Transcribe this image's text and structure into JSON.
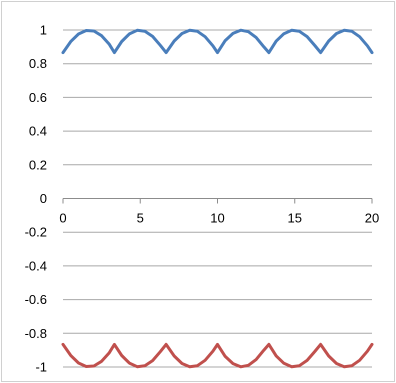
{
  "chart_data": {
    "type": "line",
    "title": "",
    "xlabel": "",
    "ylabel": "",
    "xlim": [
      0,
      20
    ],
    "ylim": [
      -1,
      1
    ],
    "x_ticks": [
      0,
      5,
      10,
      15,
      20
    ],
    "x_tick_labels": [
      "0",
      "5",
      "10",
      "15",
      "20"
    ],
    "y_ticks": [
      1,
      0.8,
      0.6,
      0.4,
      0.2,
      0,
      -0.2,
      -0.4,
      -0.6,
      -0.8,
      -1
    ],
    "y_tick_labels": [
      "1",
      "0.8",
      "0.6",
      "0.4",
      "0.2",
      "0",
      "-0.2",
      "-0.4",
      "-0.6",
      "-0.8",
      "-1"
    ],
    "grid": true,
    "legend": "none",
    "series": [
      {
        "color": "#4a7ebb",
        "x": [
          0,
          0.5,
          1,
          1.5,
          2,
          2.5,
          3,
          3.33,
          3.8,
          4.3,
          4.8,
          5.3,
          5.8,
          6.3,
          6.67,
          7.2,
          7.7,
          8.2,
          8.7,
          9.2,
          9.7,
          10,
          10.5,
          11,
          11.5,
          12,
          12.5,
          13,
          13.33,
          13.8,
          14.3,
          14.8,
          15.3,
          15.8,
          16.3,
          16.67,
          17.2,
          17.7,
          18.2,
          18.7,
          19.2,
          19.7,
          20
        ],
        "y": [
          0.866,
          0.931,
          0.976,
          0.997,
          0.994,
          0.966,
          0.915,
          0.866,
          0.932,
          0.977,
          0.998,
          0.992,
          0.962,
          0.909,
          0.866,
          0.935,
          0.979,
          0.998,
          0.992,
          0.96,
          0.906,
          0.866,
          0.937,
          0.98,
          0.999,
          0.99,
          0.956,
          0.9,
          0.866,
          0.934,
          0.978,
          0.998,
          0.992,
          0.961,
          0.908,
          0.866,
          0.935,
          0.979,
          0.998,
          0.992,
          0.96,
          0.906,
          0.866
        ]
      },
      {
        "color": "#c0504d",
        "x": [
          0,
          0.5,
          1,
          1.5,
          2,
          2.5,
          3,
          3.33,
          3.8,
          4.3,
          4.8,
          5.3,
          5.8,
          6.3,
          6.67,
          7.2,
          7.7,
          8.2,
          8.7,
          9.2,
          9.7,
          10,
          10.5,
          11,
          11.5,
          12,
          12.5,
          13,
          13.33,
          13.8,
          14.3,
          14.8,
          15.3,
          15.8,
          16.3,
          16.67,
          17.2,
          17.7,
          18.2,
          18.7,
          19.2,
          19.7,
          20
        ],
        "y": [
          -0.866,
          -0.931,
          -0.976,
          -0.997,
          -0.994,
          -0.966,
          -0.915,
          -0.866,
          -0.932,
          -0.977,
          -0.998,
          -0.992,
          -0.962,
          -0.909,
          -0.866,
          -0.935,
          -0.979,
          -0.998,
          -0.992,
          -0.96,
          -0.906,
          -0.866,
          -0.937,
          -0.98,
          -0.999,
          -0.99,
          -0.956,
          -0.9,
          -0.866,
          -0.934,
          -0.978,
          -0.998,
          -0.992,
          -0.961,
          -0.908,
          -0.866,
          -0.935,
          -0.979,
          -0.998,
          -0.992,
          -0.96,
          -0.906,
          -0.866
        ]
      }
    ]
  }
}
